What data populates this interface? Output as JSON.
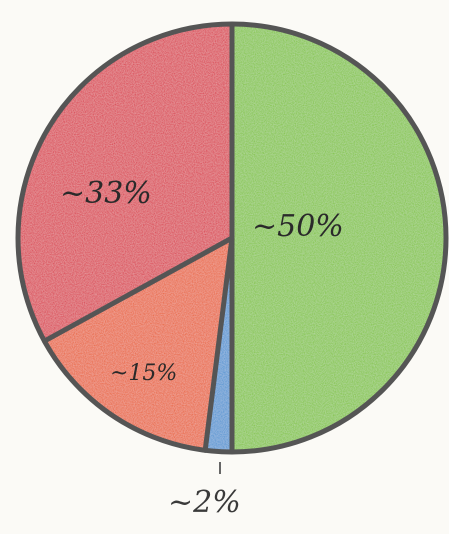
{
  "chart_data": {
    "type": "pie",
    "start_angle_deg": 0,
    "direction": "clockwise",
    "slices": [
      {
        "label": "~50%",
        "value": 50,
        "color": "#7cc22e"
      },
      {
        "label": "~2%",
        "value": 2,
        "color": "#3f8fd0"
      },
      {
        "label": "~15%",
        "value": 15,
        "color": "#e8581c"
      },
      {
        "label": "~33%",
        "value": 33,
        "color": "#d9283c"
      }
    ],
    "outline_color": "#555555"
  }
}
